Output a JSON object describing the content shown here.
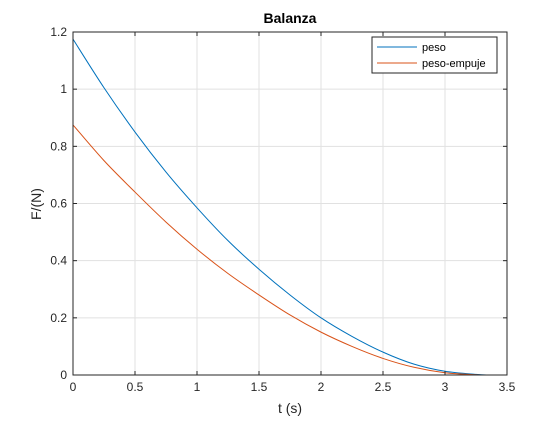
{
  "chart_data": {
    "type": "line",
    "title": "Balanza",
    "xlabel": "t (s)",
    "ylabel": "F/(N)",
    "xlim": [
      0,
      3.5
    ],
    "ylim": [
      0,
      1.2
    ],
    "xticks": [
      0,
      0.5,
      1,
      1.5,
      2,
      2.5,
      3,
      3.5
    ],
    "xtick_labels": [
      "0",
      "0.5",
      "1",
      "1.5",
      "2",
      "2.5",
      "3",
      "3.5"
    ],
    "yticks": [
      0,
      0.2,
      0.4,
      0.6,
      0.8,
      1,
      1.2
    ],
    "ytick_labels": [
      "0",
      "0.2",
      "0.4",
      "0.6",
      "0.8",
      "1",
      "1.2"
    ],
    "grid": true,
    "legend_position": "top-right",
    "x": [
      0,
      0.25,
      0.5,
      0.75,
      1.0,
      1.25,
      1.5,
      1.75,
      2.0,
      2.25,
      2.5,
      2.75,
      3.0,
      3.25,
      3.35
    ],
    "series": [
      {
        "name": "peso",
        "color": "#0072bd",
        "values": [
          1.175,
          1.005,
          0.85,
          0.71,
          0.585,
          0.47,
          0.37,
          0.28,
          0.2,
          0.135,
          0.08,
          0.038,
          0.013,
          0.002,
          0.0
        ]
      },
      {
        "name": "peso-empuje",
        "color": "#d95319",
        "values": [
          0.875,
          0.75,
          0.64,
          0.535,
          0.44,
          0.355,
          0.28,
          0.21,
          0.15,
          0.1,
          0.058,
          0.027,
          0.008,
          0.001,
          0.0
        ]
      }
    ]
  }
}
